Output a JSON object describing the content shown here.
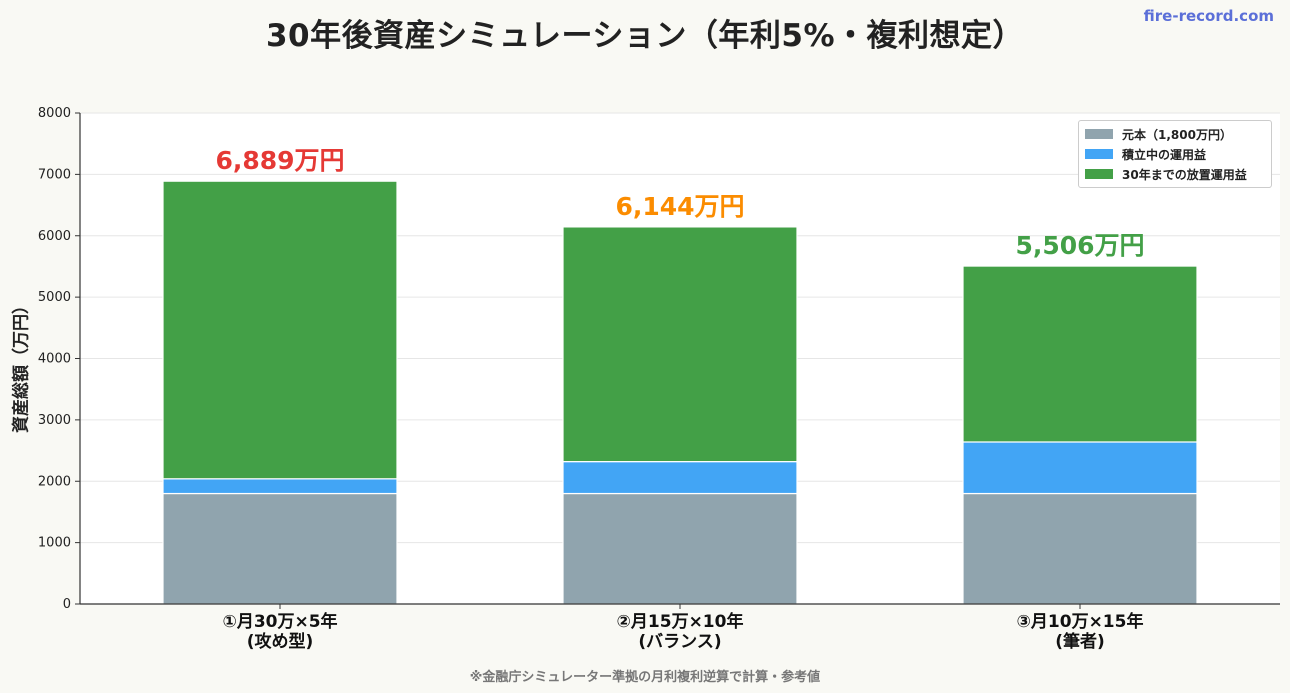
{
  "header": {
    "title": "30年後資産シミュレーション（年利5%・複利想定）",
    "brand": "fire-record.com"
  },
  "footnote": "※金融庁シミュレーター準拠の月利複利逆算で計算・参考値",
  "chart_data": {
    "type": "bar",
    "stacked": true,
    "categories": [
      [
        "①月30万×5年",
        "(攻め型)"
      ],
      [
        "②月15万×10年",
        "(バランス)"
      ],
      [
        "③月10万×15年",
        "(筆者)"
      ]
    ],
    "series": [
      {
        "name": "元本（1,800万円）",
        "values": [
          1800,
          1800,
          1800
        ],
        "color": "#90a4ae"
      },
      {
        "name": "積立中の運用益",
        "values": [
          240,
          520,
          840
        ],
        "color": "#42a5f5"
      },
      {
        "name": "30年までの放置運用益",
        "values": [
          4849,
          3824,
          2866
        ],
        "color": "#43a047"
      }
    ],
    "totals": [
      "6,889万円",
      "6,144万円",
      "5,506万円"
    ],
    "total_colors": [
      "#e53935",
      "#fb8c00",
      "#43a047"
    ],
    "ylabel": "資産総額（万円）",
    "xlabel": "",
    "ylim": [
      0,
      8000
    ],
    "yticks": [
      0,
      1000,
      2000,
      3000,
      4000,
      5000,
      6000,
      7000,
      8000
    ],
    "grid": true,
    "legend_position": "top-right"
  }
}
